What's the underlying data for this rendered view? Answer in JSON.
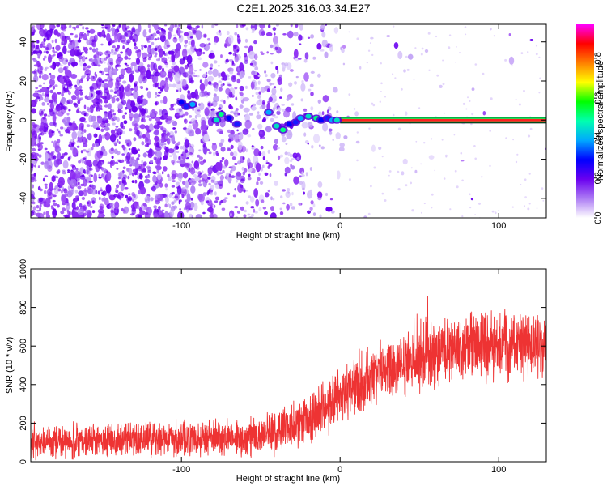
{
  "figure": {
    "title": "C2E1.2025.316.03.34.E27"
  },
  "chart_data": [
    {
      "type": "heatmap",
      "xlabel": "Height of straight line (km)",
      "ylabel": "Frequency (Hz)",
      "xlim": [
        -195,
        130
      ],
      "ylim": [
        -50,
        49
      ],
      "x_ticks": [
        -100,
        0,
        100
      ],
      "y_ticks": [
        -40,
        -20,
        0,
        20,
        40
      ],
      "x_tick_labels": [
        "-100",
        "0",
        "100"
      ],
      "y_tick_labels": [
        "-40",
        "-20",
        "0",
        "20",
        "40"
      ],
      "grid": false,
      "colorbar": {
        "label": "Normalized spectral amplitude",
        "range": [
          0,
          0.97
        ],
        "ticks": [
          0,
          0.2,
          0.4,
          0.6,
          0.8
        ],
        "tick_labels": [
          "0.0",
          "0.2",
          "0.4",
          "0.6",
          "0.8"
        ],
        "colors": [
          "#ffffff",
          "#ad7cf4",
          "#6a00f0",
          "#0000ff",
          "#00a8ff",
          "#00ffb0",
          "#00ff00",
          "#ffff00",
          "#ff8000",
          "#ff0000",
          "#ff00ff"
        ]
      },
      "line": {
        "x_start": 0,
        "x_end": 130,
        "frequency": 0,
        "color_center": "#ff2020",
        "color_halo": "#00ff60",
        "outline": "#000000"
      },
      "track": [
        {
          "x": -100,
          "y": 9
        },
        {
          "x": -97,
          "y": 7
        },
        {
          "x": -93,
          "y": 8
        },
        {
          "x": -78,
          "y": 0
        },
        {
          "x": -75,
          "y": 3
        },
        {
          "x": -70,
          "y": 1
        },
        {
          "x": -65,
          "y": -2
        },
        {
          "x": -45,
          "y": 4
        },
        {
          "x": -40,
          "y": -3
        },
        {
          "x": -36,
          "y": -5
        },
        {
          "x": -32,
          "y": -2
        },
        {
          "x": -28,
          "y": -1
        },
        {
          "x": -25,
          "y": 1
        },
        {
          "x": -20,
          "y": 2
        },
        {
          "x": -15,
          "y": 1
        },
        {
          "x": -12,
          "y": 0
        },
        {
          "x": -8,
          "y": 1
        },
        {
          "x": -5,
          "y": 0
        },
        {
          "x": -2,
          "y": 0
        }
      ]
    },
    {
      "type": "line",
      "xlabel": "Height of straight line (km)",
      "ylabel": "SNR (10 * v/v)",
      "xlim": [
        -195,
        130
      ],
      "ylim": [
        0,
        1000
      ],
      "x_ticks": [
        -100,
        0,
        100
      ],
      "y_ticks": [
        0,
        200,
        400,
        600,
        800,
        1000
      ],
      "x_tick_labels": [
        "-100",
        "0",
        "100"
      ],
      "y_tick_labels": [
        "0",
        "200",
        "400",
        "600",
        "800",
        "1000"
      ],
      "grid": false,
      "series": [
        {
          "color": "#ee3333",
          "x": [
            -195,
            -150,
            -100,
            -60,
            -40,
            -20,
            0,
            20,
            40,
            60,
            75,
            100,
            115,
            130
          ],
          "y": [
            105,
            110,
            120,
            125,
            150,
            230,
            330,
            440,
            530,
            560,
            600,
            600,
            620,
            600
          ],
          "spread": [
            85,
            85,
            90,
            95,
            110,
            130,
            150,
            160,
            170,
            170,
            170,
            170,
            170,
            170
          ]
        }
      ]
    }
  ]
}
